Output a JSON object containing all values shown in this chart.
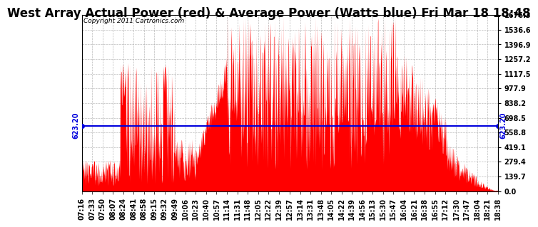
{
  "title": "West Array Actual Power (red) & Average Power (Watts blue) Fri Mar 18 18:48",
  "copyright": "Copyright 2011 Cartronics.com",
  "average_power": 623.2,
  "y_max": 1676.3,
  "y_min": 0.0,
  "y_ticks": [
    0.0,
    139.7,
    279.4,
    419.1,
    558.8,
    698.5,
    838.2,
    977.9,
    1117.5,
    1257.2,
    1396.9,
    1536.6,
    1676.3
  ],
  "x_labels": [
    "07:16",
    "07:33",
    "07:50",
    "08:07",
    "08:24",
    "08:41",
    "08:58",
    "09:15",
    "09:32",
    "09:49",
    "10:06",
    "10:23",
    "10:40",
    "10:57",
    "11:14",
    "11:31",
    "11:48",
    "12:05",
    "12:22",
    "12:39",
    "12:57",
    "13:14",
    "13:31",
    "13:48",
    "14:05",
    "14:22",
    "14:39",
    "14:56",
    "15:13",
    "15:30",
    "15:47",
    "16:04",
    "16:21",
    "16:38",
    "16:55",
    "17:12",
    "17:30",
    "17:47",
    "18:04",
    "18:21",
    "18:38"
  ],
  "bg_color": "#ffffff",
  "fill_color": "#ff0000",
  "line_color": "#0000dd",
  "grid_color": "#aaaaaa",
  "title_fontsize": 12,
  "tick_fontsize": 7,
  "copyright_fontsize": 6.5
}
